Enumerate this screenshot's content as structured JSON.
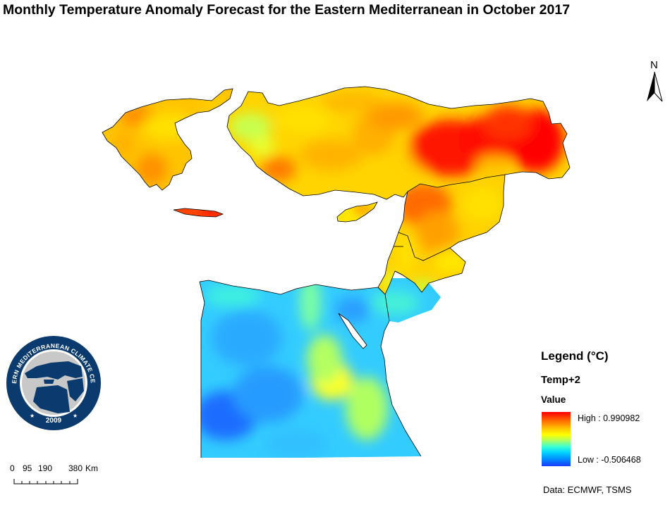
{
  "title": "Monthly Temperature Anomaly Forecast for the Eastern Mediterranean in October 2017",
  "north_arrow": {
    "label": "N",
    "icon": "north-arrow-icon"
  },
  "logo": {
    "text": "EASTERN MEDITERRANEAN CLIMATE CENTRE",
    "year": "2009",
    "ring_color": "#0a3a6e"
  },
  "scale_bar": {
    "ticks": [
      "0",
      "95",
      "190",
      "380"
    ],
    "unit": "Km"
  },
  "legend": {
    "title": "Legend (°C)",
    "layer": "Temp+2",
    "value_label": "Value",
    "high_label": "High : 0.990982",
    "low_label": "Low : -0.506468",
    "high_value": 0.990982,
    "low_value": -0.506468,
    "ramp_colors": [
      "#ff0000",
      "#ff6a00",
      "#ffff00",
      "#3cffd2",
      "#0090ff",
      "#1a3cff"
    ]
  },
  "source": "Data: ECMWF, TSMS"
}
